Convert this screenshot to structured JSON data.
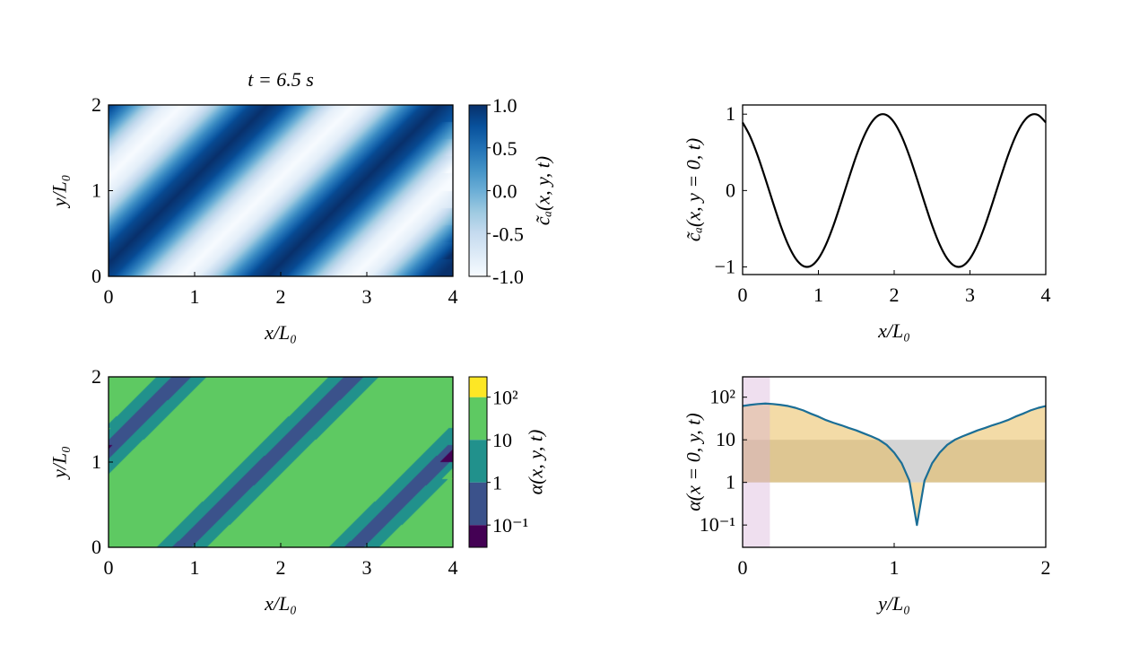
{
  "figure": {
    "title": "t = 6.5 s"
  },
  "chart_data": [
    {
      "type": "heatmap",
      "panel": "top-left",
      "title": "t = 6.5 s",
      "xlabel": "x/L₀",
      "ylabel": "y/L₀",
      "colorbar_label": "c̃ₐ(x, y, t)",
      "colormap": "Blues",
      "clim": [
        -1,
        1
      ],
      "xlim": [
        0,
        4
      ],
      "ylim": [
        0,
        2
      ],
      "xticks": [
        0,
        1,
        2,
        3,
        4
      ],
      "xtick_labels": [
        "0",
        "1",
        "2",
        "3",
        "4"
      ],
      "yticks": [
        0,
        1,
        2
      ],
      "ytick_labels": [
        "0",
        "1",
        "2"
      ],
      "colorbar_ticks": [
        1,
        0.5,
        0,
        -0.5,
        -1
      ],
      "colorbar_tick_labels": [
        "1.0",
        "0.5",
        "0.0",
        "-0.5",
        "-1.0"
      ],
      "x": [
        0.05,
        0.25,
        0.45,
        0.65,
        0.85,
        1.05,
        1.25,
        1.45,
        1.65,
        1.85,
        2.05,
        2.25,
        2.45,
        2.65,
        2.85,
        3.05,
        3.25,
        3.45,
        3.65,
        3.85
      ],
      "y": [
        0,
        0.2,
        0.4,
        0.6,
        0.8,
        1.0,
        1.2,
        1.4,
        1.6,
        1.8,
        2.0
      ],
      "z": [
        [
          0.809,
          0.309,
          -0.309,
          -0.809,
          -1,
          -0.809,
          -0.309,
          0.309,
          0.809,
          1,
          0.809,
          0.309,
          -0.309,
          -0.809,
          -1,
          -0.809,
          -0.309,
          0.309,
          0.809,
          1
        ],
        [
          1,
          0.809,
          0.309,
          -0.309,
          -0.809,
          -1,
          -0.809,
          -0.309,
          0.309,
          0.809,
          1,
          0.809,
          0.309,
          -0.309,
          -0.809,
          -1,
          -0.809,
          -0.309,
          0.309,
          0.809
        ],
        [
          0.809,
          1,
          0.809,
          0.309,
          -0.309,
          -0.809,
          -1,
          -0.809,
          -0.309,
          0.309,
          0.809,
          1,
          0.809,
          0.309,
          -0.309,
          -0.809,
          -1,
          -0.809,
          -0.309,
          0.309
        ],
        [
          0.309,
          0.809,
          1,
          0.809,
          0.309,
          -0.309,
          -0.809,
          -1,
          -0.809,
          -0.309,
          0.309,
          0.809,
          1,
          0.809,
          0.309,
          -0.309,
          -0.809,
          -1,
          -0.809,
          -0.309
        ],
        [
          -0.309,
          0.309,
          0.809,
          1,
          0.809,
          0.309,
          -0.309,
          -0.809,
          -1,
          -0.809,
          -0.309,
          0.309,
          0.809,
          1,
          0.809,
          0.309,
          -0.309,
          -0.809,
          -1,
          -0.809
        ],
        [
          -0.809,
          -0.309,
          0.309,
          0.809,
          1,
          0.809,
          0.309,
          -0.309,
          -0.809,
          -1,
          -0.809,
          -0.309,
          0.309,
          0.809,
          1,
          0.809,
          0.309,
          -0.309,
          -0.809,
          -1
        ],
        [
          -1,
          -0.809,
          -0.309,
          0.309,
          0.809,
          1,
          0.809,
          0.309,
          -0.309,
          -0.809,
          -1,
          -0.809,
          -0.309,
          0.309,
          0.809,
          1,
          0.809,
          0.309,
          -0.309,
          -0.809
        ],
        [
          -0.809,
          -1,
          -0.809,
          -0.309,
          0.309,
          0.809,
          1,
          0.809,
          0.309,
          -0.309,
          -0.809,
          -1,
          -0.809,
          -0.309,
          0.309,
          0.809,
          1,
          0.809,
          0.309,
          -0.309
        ],
        [
          -0.309,
          -0.809,
          -1,
          -0.809,
          -0.309,
          0.309,
          0.809,
          1,
          0.809,
          0.309,
          -0.309,
          -0.809,
          -1,
          -0.809,
          -0.309,
          0.309,
          0.809,
          1,
          0.809,
          0.309
        ],
        [
          0.309,
          -0.309,
          -0.809,
          -1,
          -0.809,
          -0.309,
          0.309,
          0.809,
          1,
          0.809,
          0.309,
          -0.309,
          -0.809,
          -1,
          -0.809,
          -0.309,
          0.309,
          0.809,
          1,
          0.809
        ],
        [
          0.809,
          0.309,
          -0.309,
          -0.809,
          -1,
          -0.809,
          -0.309,
          0.309,
          0.809,
          1,
          0.809,
          0.309,
          -0.309,
          -0.809,
          -1,
          -0.809,
          -0.309,
          0.309,
          0.809,
          1
        ]
      ]
    },
    {
      "type": "line",
      "panel": "top-right",
      "xlabel": "x/L₀",
      "ylabel": "c̃ₐ(x, y = 0, t)",
      "xlim": [
        0,
        4
      ],
      "ylim": [
        -1.1,
        1.12
      ],
      "xticks": [
        0,
        1,
        2,
        3,
        4
      ],
      "xtick_labels": [
        "0",
        "1",
        "2",
        "3",
        "4"
      ],
      "yticks": [
        1,
        0,
        -1
      ],
      "ytick_labels": [
        "1",
        "0",
        "−1"
      ],
      "color": "#000000",
      "x": [
        0,
        0.1,
        0.2,
        0.3,
        0.4,
        0.5,
        0.6,
        0.7,
        0.8,
        0.9,
        1.0,
        1.1,
        1.2,
        1.3,
        1.4,
        1.5,
        1.6,
        1.7,
        1.8,
        1.9,
        2.0,
        2.1,
        2.2,
        2.3,
        2.4,
        2.5,
        2.6,
        2.7,
        2.8,
        2.9,
        3.0,
        3.1,
        3.2,
        3.3,
        3.4,
        3.5,
        3.6,
        3.7,
        3.8,
        3.9,
        4.0
      ],
      "y": [
        0.891,
        0.707,
        0.454,
        0.156,
        -0.156,
        -0.454,
        -0.707,
        -0.891,
        -0.988,
        -0.988,
        -0.891,
        -0.707,
        -0.454,
        -0.156,
        0.156,
        0.454,
        0.707,
        0.891,
        0.988,
        0.988,
        0.891,
        0.707,
        0.454,
        0.156,
        -0.156,
        -0.454,
        -0.707,
        -0.891,
        -0.988,
        -0.988,
        -0.891,
        -0.707,
        -0.454,
        -0.156,
        0.156,
        0.454,
        0.707,
        0.891,
        0.988,
        0.988,
        0.891
      ]
    },
    {
      "type": "heatmap",
      "style": "filled-contour",
      "panel": "bottom-left",
      "xlabel": "x/L₀",
      "ylabel": "y/L₀",
      "colorbar_label": "α(x, y, t)",
      "colormap": "viridis",
      "colorscale": "log",
      "clim": [
        0.03,
        300
      ],
      "levels": [
        0.03,
        0.1,
        1,
        10,
        100,
        300
      ],
      "level_colors": [
        "#440154",
        "#3b528b",
        "#21918c",
        "#5ec962",
        "#fde725"
      ],
      "xlim": [
        0,
        4
      ],
      "ylim": [
        0,
        2
      ],
      "xticks": [
        0,
        1,
        2,
        3,
        4
      ],
      "xtick_labels": [
        "0",
        "1",
        "2",
        "3",
        "4"
      ],
      "yticks": [
        0,
        1,
        2
      ],
      "ytick_labels": [
        "0",
        "1",
        "2"
      ],
      "colorbar_ticks": [
        100,
        10,
        1,
        0.1
      ],
      "colorbar_tick_labels": [
        "10²",
        "10",
        "1",
        "10⁻¹"
      ],
      "x": [
        0.05,
        0.25,
        0.45,
        0.65,
        0.85,
        1.05,
        1.25,
        1.45,
        1.65,
        1.85,
        2.05,
        2.25,
        2.45,
        2.65,
        2.85,
        3.05,
        3.25,
        3.45,
        3.65,
        3.85
      ],
      "y": [
        0,
        0.2,
        0.4,
        0.6,
        0.8,
        1.0,
        1.2,
        1.4,
        1.6,
        1.8,
        2.0
      ],
      "z": [
        [
          56,
          29,
          17,
          6.3,
          0.1,
          6.3,
          17,
          29,
          56,
          71,
          56,
          29,
          17,
          6.3,
          0.1,
          6.3,
          17,
          29,
          56,
          71
        ],
        [
          71,
          56,
          29,
          17,
          6.3,
          0.1,
          6.3,
          17,
          29,
          56,
          71,
          56,
          29,
          17,
          6.3,
          0.1,
          6.3,
          17,
          29,
          56
        ],
        [
          56,
          71,
          56,
          29,
          17,
          6.3,
          0.1,
          6.3,
          17,
          29,
          56,
          71,
          56,
          29,
          17,
          6.3,
          0.1,
          6.3,
          17,
          29
        ],
        [
          29,
          56,
          71,
          56,
          29,
          17,
          6.3,
          0.1,
          6.3,
          17,
          29,
          56,
          71,
          56,
          29,
          17,
          6.3,
          0.1,
          6.3,
          17
        ],
        [
          17,
          29,
          56,
          71,
          56,
          29,
          17,
          6.3,
          0.1,
          6.3,
          17,
          29,
          56,
          71,
          56,
          29,
          17,
          6.3,
          0.1,
          6.3
        ],
        [
          6.3,
          17,
          29,
          56,
          71,
          56,
          29,
          17,
          6.3,
          0.1,
          6.3,
          17,
          29,
          56,
          71,
          56,
          29,
          17,
          6.3,
          0.1
        ],
        [
          0.1,
          6.3,
          17,
          29,
          56,
          71,
          56,
          29,
          17,
          6.3,
          0.1,
          6.3,
          17,
          29,
          56,
          71,
          56,
          29,
          17,
          6.3
        ],
        [
          6.3,
          0.1,
          6.3,
          17,
          29,
          56,
          71,
          56,
          29,
          17,
          6.3,
          0.1,
          6.3,
          17,
          29,
          56,
          71,
          56,
          29,
          17
        ],
        [
          17,
          6.3,
          0.1,
          6.3,
          17,
          29,
          56,
          71,
          56,
          29,
          17,
          6.3,
          0.1,
          6.3,
          17,
          29,
          56,
          71,
          56,
          29
        ],
        [
          29,
          17,
          6.3,
          0.1,
          6.3,
          17,
          29,
          56,
          71,
          56,
          29,
          17,
          6.3,
          0.1,
          6.3,
          17,
          29,
          56,
          71,
          56
        ],
        [
          56,
          29,
          17,
          6.3,
          0.1,
          6.3,
          17,
          29,
          56,
          71,
          56,
          29,
          17,
          6.3,
          0.1,
          6.3,
          17,
          29,
          56,
          71
        ]
      ]
    },
    {
      "type": "line",
      "panel": "bottom-right",
      "xlabel": "y/L₀",
      "ylabel": "α(x = 0, y, t)",
      "yscale": "log",
      "xlim": [
        0,
        2
      ],
      "ylim": [
        0.03,
        300
      ],
      "xticks": [
        0,
        1,
        2
      ],
      "xtick_labels": [
        "0",
        "1",
        "2"
      ],
      "yticks": [
        100,
        10,
        1,
        0.1
      ],
      "ytick_labels": [
        "10²",
        "10",
        "1",
        "10⁻¹"
      ],
      "color": "#1b6e96",
      "x": [
        0,
        0.05,
        0.1,
        0.15,
        0.2,
        0.25,
        0.3,
        0.35,
        0.4,
        0.45,
        0.5,
        0.55,
        0.6,
        0.65,
        0.7,
        0.75,
        0.8,
        0.85,
        0.9,
        0.95,
        1.0,
        1.05,
        1.1,
        1.15,
        1.2,
        1.25,
        1.3,
        1.35,
        1.4,
        1.45,
        1.5,
        1.55,
        1.6,
        1.65,
        1.7,
        1.75,
        1.8,
        1.85,
        1.9,
        1.95,
        2.0
      ],
      "y": [
        62,
        66,
        69,
        71,
        69,
        66,
        62,
        56,
        49,
        41,
        35,
        29,
        25,
        22,
        19,
        16.6,
        14.1,
        12.0,
        10,
        7.6,
        5.0,
        2.8,
        1.1,
        0.1,
        1.1,
        2.8,
        5.0,
        7.6,
        10,
        12.0,
        14.1,
        16.6,
        19,
        22,
        25,
        29,
        35,
        41,
        49,
        56,
        62
      ],
      "fills": [
        {
          "kind": "horizontal-band",
          "from": 1,
          "to": 10,
          "color": "#a0a0a0",
          "opacity": 0.45
        },
        {
          "kind": "between-curve-and",
          "value": 1,
          "color": "#e8b850",
          "opacity": 0.5
        },
        {
          "kind": "vertical-band",
          "from": 0,
          "to": 0.18,
          "color": "#d8b0d8",
          "opacity": 0.4
        }
      ]
    }
  ]
}
